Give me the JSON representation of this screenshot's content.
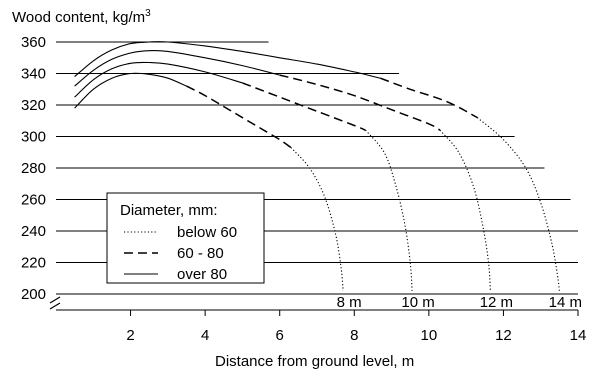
{
  "chart_data": {
    "type": "line",
    "title": "",
    "ylabel": "Wood content, kg/m",
    "ylabel_superscript": "3",
    "xlabel": "Distance from ground level, m",
    "xlim": [
      0,
      14
    ],
    "ylim": [
      200,
      360
    ],
    "x_ticks": [
      2,
      4,
      6,
      8,
      10,
      12,
      14
    ],
    "y_ticks": [
      200,
      220,
      240,
      260,
      280,
      300,
      320,
      340,
      360
    ],
    "grid": "horizontal",
    "legend": {
      "title": "Diameter, mm:",
      "placement": "center-left",
      "entries": [
        {
          "label": "below 60",
          "style": "dotted"
        },
        {
          "label": "60 - 80",
          "style": "dashed"
        },
        {
          "label": "over 80",
          "style": "solid"
        }
      ]
    },
    "curves": [
      {
        "label": "8 m",
        "segments": [
          {
            "style": "solid",
            "points": [
              [
                0.5,
                318
              ],
              [
                1.0,
                330
              ],
              [
                1.5,
                337
              ],
              [
                2.0,
                340
              ],
              [
                2.5,
                339.5
              ],
              [
                3.0,
                337
              ],
              [
                3.5,
                332
              ]
            ]
          },
          {
            "style": "dashed",
            "points": [
              [
                3.5,
                332
              ],
              [
                4.0,
                326
              ],
              [
                4.5,
                319
              ],
              [
                5.0,
                312
              ],
              [
                5.5,
                305
              ],
              [
                6.0,
                298
              ],
              [
                6.3,
                293
              ]
            ]
          },
          {
            "style": "dotted",
            "points": [
              [
                6.3,
                293
              ],
              [
                6.8,
                280
              ],
              [
                7.2,
                262
              ],
              [
                7.5,
                238
              ],
              [
                7.65,
                216
              ],
              [
                7.7,
                202
              ]
            ]
          }
        ]
      },
      {
        "label": "10 m",
        "segments": [
          {
            "style": "solid",
            "points": [
              [
                0.5,
                325
              ],
              [
                1.0,
                336
              ],
              [
                1.5,
                343
              ],
              [
                2.0,
                346.5
              ],
              [
                2.5,
                347
              ],
              [
                3.0,
                346
              ],
              [
                4.0,
                341
              ],
              [
                5.0,
                334
              ]
            ]
          },
          {
            "style": "dashed",
            "points": [
              [
                5.0,
                334
              ],
              [
                6.0,
                325
              ],
              [
                7.0,
                316
              ],
              [
                8.0,
                307
              ],
              [
                8.3,
                304
              ]
            ]
          },
          {
            "style": "dotted",
            "points": [
              [
                8.3,
                304
              ],
              [
                8.8,
                290
              ],
              [
                9.1,
                270
              ],
              [
                9.35,
                245
              ],
              [
                9.5,
                220
              ],
              [
                9.55,
                202
              ]
            ]
          }
        ]
      },
      {
        "label": "12 m",
        "segments": [
          {
            "style": "solid",
            "points": [
              [
                0.5,
                332
              ],
              [
                1.0,
                342
              ],
              [
                1.5,
                349
              ],
              [
                2.0,
                353
              ],
              [
                2.5,
                354.5
              ],
              [
                3.0,
                354
              ],
              [
                4.0,
                350
              ],
              [
                5.0,
                345
              ],
              [
                6.0,
                339
              ]
            ]
          },
          {
            "style": "dashed",
            "points": [
              [
                6.0,
                339
              ],
              [
                7.0,
                333
              ],
              [
                8.0,
                326
              ],
              [
                9.0,
                317
              ],
              [
                10.0,
                308
              ],
              [
                10.3,
                304
              ]
            ]
          },
          {
            "style": "dotted",
            "points": [
              [
                10.3,
                304
              ],
              [
                10.8,
                290
              ],
              [
                11.2,
                268
              ],
              [
                11.45,
                243
              ],
              [
                11.6,
                220
              ],
              [
                11.65,
                202
              ]
            ]
          }
        ]
      },
      {
        "label": "14 m",
        "segments": [
          {
            "style": "solid",
            "points": [
              [
                0.5,
                338
              ],
              [
                1.0,
                348
              ],
              [
                1.5,
                355
              ],
              [
                2.0,
                359
              ],
              [
                2.5,
                360
              ],
              [
                3.0,
                360
              ],
              [
                4.0,
                357.5
              ],
              [
                5.0,
                354
              ],
              [
                6.0,
                350
              ],
              [
                7.0,
                346
              ],
              [
                8.0,
                341
              ],
              [
                8.7,
                337
              ]
            ]
          },
          {
            "style": "dashed",
            "points": [
              [
                8.7,
                337
              ],
              [
                9.5,
                330
              ],
              [
                10.5,
                322
              ],
              [
                11.3,
                312
              ]
            ]
          },
          {
            "style": "dotted",
            "points": [
              [
                11.3,
                312
              ],
              [
                12.0,
                298
              ],
              [
                12.6,
                280
              ],
              [
                13.0,
                258
              ],
              [
                13.3,
                232
              ],
              [
                13.45,
                212
              ],
              [
                13.5,
                202
              ]
            ]
          }
        ]
      }
    ],
    "gridlines": [
      {
        "y": 360,
        "x_end": 5.7
      },
      {
        "y": 340,
        "x_end": 9.2
      },
      {
        "y": 320,
        "x_end": 10.7
      },
      {
        "y": 300,
        "x_end": 12.3
      },
      {
        "y": 280,
        "x_end": 13.1
      },
      {
        "y": 260,
        "x_end": 13.8
      },
      {
        "y": 240,
        "x_end": 14.0
      },
      {
        "y": 220,
        "x_end": 14.0
      },
      {
        "y": 200,
        "x_end": 14.0
      }
    ],
    "curve_labels": [
      {
        "text": "8 m",
        "x": 7.7
      },
      {
        "text": "10 m",
        "x": 9.55
      },
      {
        "text": "12 m",
        "x": 11.65
      },
      {
        "text": "14 m",
        "x": 13.5
      }
    ]
  }
}
